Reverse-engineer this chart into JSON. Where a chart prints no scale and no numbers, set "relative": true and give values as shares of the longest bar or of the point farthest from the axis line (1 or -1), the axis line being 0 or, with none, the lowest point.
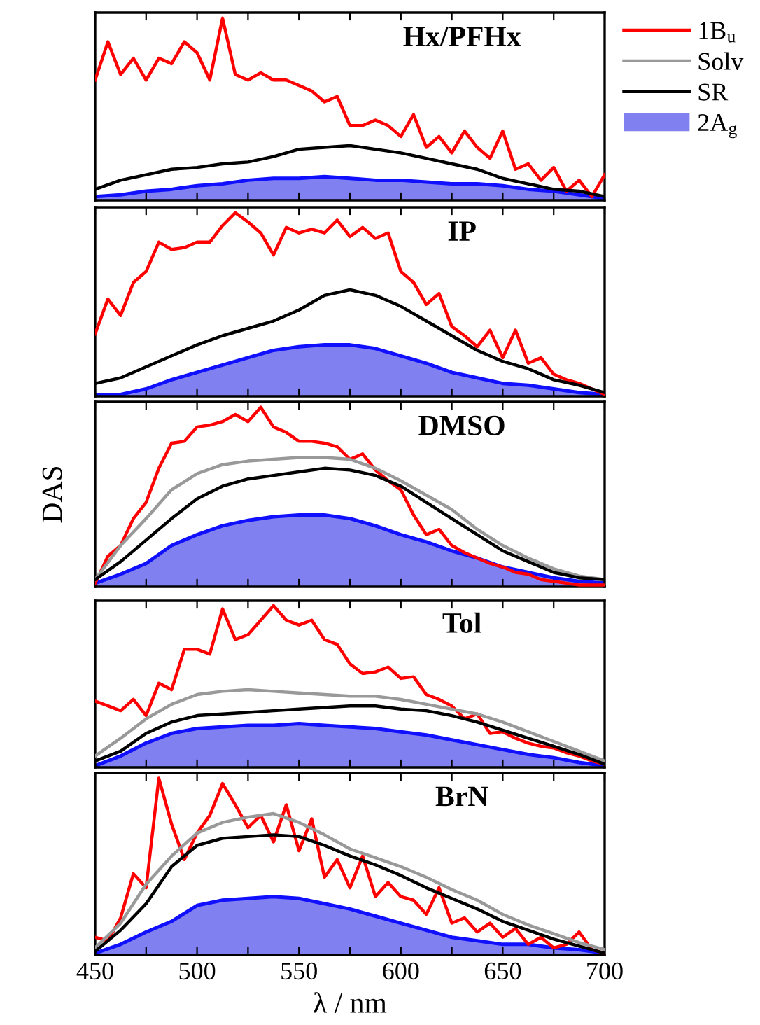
{
  "chart_data": [
    {
      "type": "line",
      "title": "Hx/PFHx",
      "relative": true,
      "tick_labels": false,
      "xlim": [
        450,
        700
      ],
      "xticks": [
        450,
        {
          "value": 475,
          "label": null
        },
        500,
        {
          "value": 525,
          "label": null
        },
        550,
        {
          "value": 575,
          "label": null
        },
        600,
        {
          "value": 625,
          "label": null
        },
        650,
        {
          "value": 675,
          "label": null
        },
        700
      ],
      "x": [
        450,
        456.25,
        462.5,
        468.75,
        475,
        481.25,
        487.5,
        493.75,
        500,
        506.25,
        512.5,
        518.75,
        525,
        531.25,
        537.5,
        543.75,
        550,
        556.25,
        562.5,
        568.75,
        575,
        581.25,
        587.5,
        593.75,
        600,
        606.25,
        612.5,
        618.75,
        625,
        631.25,
        637.5,
        643.75,
        650,
        656.25,
        662.5,
        668.75,
        675,
        681.25,
        687.5,
        693.75,
        700
      ],
      "series": [
        {
          "type": "line",
          "color": "#ff0000",
          "values": [
            0.66,
            0.87,
            0.69,
            0.78,
            0.66,
            0.78,
            0.75,
            0.87,
            0.81,
            0.66,
            1.0,
            0.69,
            0.66,
            0.7,
            0.66,
            0.66,
            0.63,
            0.6,
            0.54,
            0.57,
            0.41,
            0.41,
            0.44,
            0.41,
            0.35,
            0.47,
            0.29,
            0.35,
            0.26,
            0.38,
            0.29,
            0.23,
            0.38,
            0.17,
            0.2,
            0.11,
            0.18,
            0.05,
            0.11,
            0.02,
            0.14
          ]
        },
        {
          "type": "line",
          "color": "#000000",
          "x": [
            450,
            462.5,
            475,
            487.5,
            500,
            512.5,
            525,
            537.5,
            550,
            562.5,
            575,
            587.5,
            600,
            612.5,
            625,
            637.5,
            650,
            662.5,
            675,
            687.5,
            700
          ],
          "values": [
            0.06,
            0.11,
            0.14,
            0.17,
            0.18,
            0.2,
            0.21,
            0.24,
            0.28,
            0.29,
            0.3,
            0.28,
            0.26,
            0.23,
            0.2,
            0.17,
            0.12,
            0.09,
            0.06,
            0.05,
            0.02
          ]
        },
        {
          "type": "area",
          "color": "#8080f0",
          "x": [
            450,
            462.5,
            475,
            487.5,
            500,
            512.5,
            525,
            537.5,
            550,
            562.5,
            575,
            587.5,
            600,
            612.5,
            625,
            637.5,
            650,
            662.5,
            675,
            687.5,
            700
          ],
          "values": [
            0.02,
            0.03,
            0.05,
            0.06,
            0.08,
            0.09,
            0.11,
            0.12,
            0.12,
            0.13,
            0.12,
            0.11,
            0.11,
            0.1,
            0.09,
            0.09,
            0.08,
            0.06,
            0.05,
            0.03,
            0.01
          ]
        }
      ]
    },
    {
      "type": "line",
      "title": "IP",
      "relative": true,
      "tick_labels": false,
      "xlim": [
        450,
        700
      ],
      "xticks": [
        450,
        {
          "value": 475,
          "label": null
        },
        500,
        {
          "value": 525,
          "label": null
        },
        550,
        {
          "value": 575,
          "label": null
        },
        600,
        {
          "value": 625,
          "label": null
        },
        650,
        {
          "value": 675,
          "label": null
        },
        700
      ],
      "x": [
        450,
        456.25,
        462.5,
        468.75,
        475,
        481.25,
        487.5,
        493.75,
        500,
        506.25,
        512.5,
        518.75,
        525,
        531.25,
        537.5,
        543.75,
        550,
        556.25,
        562.5,
        568.75,
        575,
        581.25,
        587.5,
        593.75,
        600,
        606.25,
        612.5,
        618.75,
        625,
        631.25,
        637.5,
        643.75,
        650,
        656.25,
        662.5,
        668.75,
        675,
        681.25,
        687.5,
        693.75,
        700
      ],
      "series": [
        {
          "type": "line",
          "color": "#ff0000",
          "values": [
            0.34,
            0.53,
            0.44,
            0.62,
            0.68,
            0.84,
            0.8,
            0.81,
            0.84,
            0.84,
            0.93,
            1.0,
            0.95,
            0.89,
            0.77,
            0.92,
            0.89,
            0.91,
            0.89,
            0.96,
            0.87,
            0.92,
            0.86,
            0.89,
            0.68,
            0.62,
            0.5,
            0.56,
            0.38,
            0.33,
            0.27,
            0.36,
            0.21,
            0.36,
            0.18,
            0.21,
            0.12,
            0.09,
            0.07,
            0.04,
            0.01
          ]
        },
        {
          "type": "line",
          "color": "#000000",
          "x": [
            450,
            462.5,
            475,
            487.5,
            500,
            512.5,
            525,
            537.5,
            550,
            562.5,
            575,
            587.5,
            600,
            612.5,
            625,
            637.5,
            650,
            662.5,
            675,
            687.5,
            700
          ],
          "values": [
            0.07,
            0.1,
            0.16,
            0.22,
            0.28,
            0.33,
            0.37,
            0.41,
            0.47,
            0.55,
            0.58,
            0.55,
            0.49,
            0.41,
            0.33,
            0.25,
            0.19,
            0.15,
            0.09,
            0.06,
            0.02
          ]
        },
        {
          "type": "area",
          "color": "#8080f0",
          "x": [
            450,
            462.5,
            475,
            487.5,
            500,
            512.5,
            525,
            537.5,
            550,
            562.5,
            575,
            587.5,
            600,
            612.5,
            625,
            637.5,
            650,
            662.5,
            675,
            687.5,
            700
          ],
          "values": [
            0.01,
            0.01,
            0.04,
            0.09,
            0.13,
            0.17,
            0.21,
            0.25,
            0.27,
            0.28,
            0.28,
            0.26,
            0.22,
            0.18,
            0.13,
            0.1,
            0.07,
            0.06,
            0.04,
            0.02,
            0.01
          ]
        }
      ]
    },
    {
      "type": "line",
      "title": "DMSO",
      "ylabel": "DAS",
      "relative": true,
      "legend": "right",
      "tick_labels": false,
      "xlim": [
        450,
        700
      ],
      "xticks": [
        450,
        {
          "value": 475,
          "label": null
        },
        500,
        {
          "value": 525,
          "label": null
        },
        550,
        {
          "value": 575,
          "label": null
        },
        600,
        {
          "value": 625,
          "label": null
        },
        650,
        {
          "value": 675,
          "label": null
        },
        700
      ],
      "x": [
        450,
        456.25,
        462.5,
        468.75,
        475,
        481.25,
        487.5,
        493.75,
        500,
        506.25,
        512.5,
        518.75,
        525,
        531.25,
        537.5,
        543.75,
        550,
        556.25,
        562.5,
        568.75,
        575,
        581.25,
        587.5,
        593.75,
        600,
        606.25,
        612.5,
        618.75,
        625,
        631.25,
        637.5,
        643.75,
        650,
        656.25,
        662.5,
        668.75,
        675,
        681.25,
        687.5,
        693.75,
        700
      ],
      "series": [
        {
          "name": "1B$_{u}$",
          "type": "line",
          "color": "#ff0000",
          "values": [
            0.02,
            0.17,
            0.23,
            0.38,
            0.47,
            0.66,
            0.8,
            0.81,
            0.89,
            0.9,
            0.92,
            0.96,
            0.92,
            1.0,
            0.89,
            0.86,
            0.81,
            0.81,
            0.8,
            0.78,
            0.71,
            0.74,
            0.65,
            0.59,
            0.54,
            0.4,
            0.29,
            0.32,
            0.23,
            0.19,
            0.16,
            0.13,
            0.11,
            0.08,
            0.07,
            0.04,
            0.03,
            0.02,
            0.01,
            0.01,
            0.01
          ]
        },
        {
          "name": "Solv",
          "type": "line",
          "color": "#999999",
          "x": [
            450,
            462.5,
            475,
            487.5,
            500,
            512.5,
            525,
            537.5,
            550,
            562.5,
            575,
            587.5,
            600,
            612.5,
            625,
            637.5,
            650,
            662.5,
            675,
            687.5,
            700
          ],
          "values": [
            0.04,
            0.23,
            0.38,
            0.54,
            0.63,
            0.68,
            0.7,
            0.71,
            0.72,
            0.72,
            0.71,
            0.66,
            0.59,
            0.51,
            0.43,
            0.32,
            0.23,
            0.16,
            0.1,
            0.06,
            0.04
          ]
        },
        {
          "name": "SR",
          "type": "line",
          "color": "#000000",
          "x": [
            450,
            462.5,
            475,
            487.5,
            500,
            512.5,
            525,
            537.5,
            550,
            562.5,
            575,
            587.5,
            600,
            612.5,
            625,
            637.5,
            650,
            662.5,
            675,
            687.5,
            700
          ],
          "values": [
            0.04,
            0.14,
            0.26,
            0.38,
            0.49,
            0.56,
            0.6,
            0.62,
            0.64,
            0.66,
            0.65,
            0.62,
            0.56,
            0.47,
            0.38,
            0.29,
            0.2,
            0.14,
            0.08,
            0.05,
            0.04
          ]
        },
        {
          "name": "2A$_{g}$",
          "type": "area",
          "color": "#8080f0",
          "x": [
            450,
            462.5,
            475,
            487.5,
            500,
            512.5,
            525,
            537.5,
            550,
            562.5,
            575,
            587.5,
            600,
            612.5,
            625,
            637.5,
            650,
            662.5,
            675,
            687.5,
            700
          ],
          "values": [
            0.02,
            0.07,
            0.13,
            0.23,
            0.29,
            0.34,
            0.37,
            0.39,
            0.4,
            0.4,
            0.38,
            0.34,
            0.29,
            0.25,
            0.2,
            0.16,
            0.11,
            0.08,
            0.05,
            0.03,
            0.02
          ]
        }
      ]
    },
    {
      "type": "line",
      "title": "Tol",
      "relative": true,
      "tick_labels": false,
      "xlim": [
        450,
        700
      ],
      "xticks": [
        450,
        {
          "value": 475,
          "label": null
        },
        500,
        {
          "value": 525,
          "label": null
        },
        550,
        {
          "value": 575,
          "label": null
        },
        600,
        {
          "value": 625,
          "label": null
        },
        650,
        {
          "value": 675,
          "label": null
        },
        700
      ],
      "x": [
        450,
        456.25,
        462.5,
        468.75,
        475,
        481.25,
        487.5,
        493.75,
        500,
        506.25,
        512.5,
        518.75,
        525,
        531.25,
        537.5,
        543.75,
        550,
        556.25,
        562.5,
        568.75,
        575,
        581.25,
        587.5,
        593.75,
        600,
        606.25,
        612.5,
        618.75,
        625,
        631.25,
        637.5,
        643.75,
        650,
        656.25,
        662.5,
        668.75,
        675,
        681.25,
        687.5,
        693.75,
        700
      ],
      "series": [
        {
          "type": "line",
          "color": "#ff0000",
          "values": [
            0.41,
            0.38,
            0.35,
            0.42,
            0.32,
            0.52,
            0.48,
            0.73,
            0.73,
            0.7,
            0.98,
            0.79,
            0.82,
            0.91,
            1.0,
            0.91,
            0.88,
            0.91,
            0.79,
            0.76,
            0.64,
            0.58,
            0.59,
            0.62,
            0.55,
            0.56,
            0.45,
            0.42,
            0.38,
            0.3,
            0.33,
            0.21,
            0.22,
            0.18,
            0.15,
            0.13,
            0.12,
            0.09,
            0.07,
            0.04,
            0.02
          ]
        },
        {
          "type": "line",
          "color": "#999999",
          "x": [
            450,
            462.5,
            475,
            487.5,
            500,
            512.5,
            525,
            537.5,
            550,
            562.5,
            575,
            587.5,
            600,
            612.5,
            625,
            637.5,
            650,
            662.5,
            675,
            687.5,
            700
          ],
          "values": [
            0.07,
            0.18,
            0.3,
            0.39,
            0.45,
            0.47,
            0.48,
            0.47,
            0.46,
            0.45,
            0.44,
            0.44,
            0.42,
            0.39,
            0.36,
            0.33,
            0.28,
            0.22,
            0.16,
            0.1,
            0.04
          ]
        },
        {
          "type": "line",
          "color": "#000000",
          "x": [
            450,
            462.5,
            475,
            487.5,
            500,
            512.5,
            525,
            537.5,
            550,
            562.5,
            575,
            587.5,
            600,
            612.5,
            625,
            637.5,
            650,
            662.5,
            675,
            687.5,
            700
          ],
          "values": [
            0.04,
            0.1,
            0.21,
            0.28,
            0.32,
            0.33,
            0.34,
            0.35,
            0.36,
            0.37,
            0.38,
            0.38,
            0.36,
            0.35,
            0.32,
            0.28,
            0.23,
            0.18,
            0.13,
            0.08,
            0.02
          ]
        },
        {
          "type": "area",
          "color": "#8080f0",
          "x": [
            450,
            462.5,
            475,
            487.5,
            500,
            512.5,
            525,
            537.5,
            550,
            562.5,
            575,
            587.5,
            600,
            612.5,
            625,
            637.5,
            650,
            662.5,
            675,
            687.5,
            700
          ],
          "values": [
            0.01,
            0.07,
            0.15,
            0.21,
            0.24,
            0.25,
            0.26,
            0.26,
            0.27,
            0.26,
            0.25,
            0.24,
            0.22,
            0.2,
            0.17,
            0.14,
            0.11,
            0.08,
            0.06,
            0.03,
            0.01
          ]
        }
      ]
    },
    {
      "type": "line",
      "title": "BrN",
      "xlabel": "λ / nm",
      "relative": true,
      "tick_labels": "x",
      "xlim": [
        450,
        700
      ],
      "xticks": [
        450,
        {
          "value": 475,
          "label": null
        },
        500,
        {
          "value": 525,
          "label": null
        },
        550,
        {
          "value": 575,
          "label": null
        },
        600,
        {
          "value": 625,
          "label": null
        },
        650,
        {
          "value": 675,
          "label": null
        },
        700
      ],
      "x": [
        450,
        456.25,
        462.5,
        468.75,
        475,
        481.25,
        487.5,
        493.75,
        500,
        506.25,
        512.5,
        518.75,
        525,
        531.25,
        537.5,
        543.75,
        550,
        556.25,
        562.5,
        568.75,
        575,
        581.25,
        587.5,
        593.75,
        600,
        606.25,
        612.5,
        618.75,
        625,
        631.25,
        637.5,
        643.75,
        650,
        656.25,
        662.5,
        668.75,
        675,
        681.25,
        687.5,
        693.75,
        700
      ],
      "series": [
        {
          "type": "line",
          "color": "#ff0000",
          "values": [
            0.1,
            0.08,
            0.21,
            0.46,
            0.38,
            1.0,
            0.74,
            0.54,
            0.69,
            0.79,
            0.97,
            0.85,
            0.72,
            0.79,
            0.64,
            0.85,
            0.59,
            0.77,
            0.44,
            0.54,
            0.38,
            0.56,
            0.33,
            0.41,
            0.33,
            0.31,
            0.23,
            0.38,
            0.18,
            0.21,
            0.13,
            0.18,
            0.1,
            0.15,
            0.06,
            0.1,
            0.04,
            0.06,
            0.13,
            0.03,
            0.01
          ]
        },
        {
          "type": "line",
          "color": "#999999",
          "x": [
            450,
            462.5,
            475,
            487.5,
            500,
            512.5,
            525,
            537.5,
            550,
            562.5,
            575,
            587.5,
            600,
            612.5,
            625,
            637.5,
            650,
            662.5,
            675,
            687.5,
            700
          ],
          "values": [
            0.04,
            0.18,
            0.4,
            0.56,
            0.69,
            0.75,
            0.78,
            0.8,
            0.75,
            0.68,
            0.6,
            0.55,
            0.5,
            0.44,
            0.37,
            0.31,
            0.23,
            0.17,
            0.12,
            0.07,
            0.03
          ]
        },
        {
          "type": "line",
          "color": "#000000",
          "x": [
            450,
            462.5,
            475,
            487.5,
            500,
            512.5,
            525,
            537.5,
            550,
            562.5,
            575,
            587.5,
            600,
            612.5,
            625,
            637.5,
            650,
            662.5,
            675,
            687.5,
            700
          ],
          "values": [
            0.02,
            0.14,
            0.29,
            0.5,
            0.62,
            0.66,
            0.67,
            0.68,
            0.67,
            0.62,
            0.56,
            0.51,
            0.45,
            0.38,
            0.32,
            0.26,
            0.19,
            0.14,
            0.09,
            0.05,
            0.01
          ]
        },
        {
          "type": "area",
          "color": "#8080f0",
          "x": [
            450,
            462.5,
            475,
            487.5,
            500,
            512.5,
            525,
            537.5,
            550,
            562.5,
            575,
            587.5,
            600,
            612.5,
            625,
            637.5,
            650,
            662.5,
            675,
            687.5,
            700
          ],
          "values": [
            0.01,
            0.06,
            0.13,
            0.19,
            0.28,
            0.31,
            0.32,
            0.33,
            0.32,
            0.29,
            0.26,
            0.22,
            0.18,
            0.14,
            0.1,
            0.08,
            0.06,
            0.06,
            0.04,
            0.03,
            0.01
          ]
        }
      ]
    }
  ]
}
